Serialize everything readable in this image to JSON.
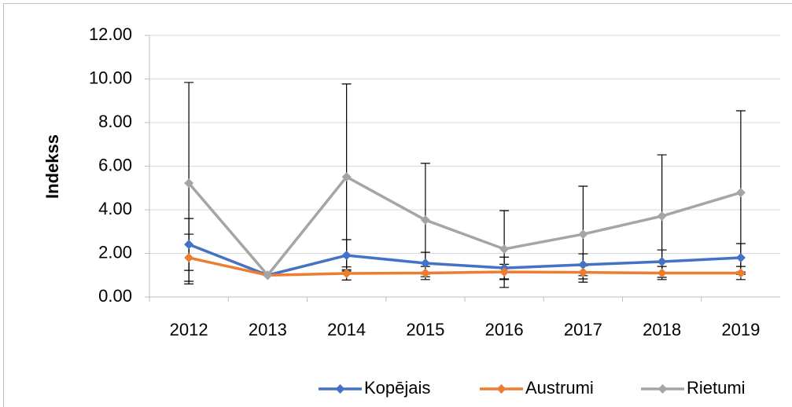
{
  "chart_data": {
    "type": "line",
    "y_label": "Indekss",
    "categories": [
      "2012",
      "2013",
      "2014",
      "2015",
      "2016",
      "2017",
      "2018",
      "2019"
    ],
    "series": [
      {
        "name": "Kopējais",
        "color": "#4472c4",
        "values": [
          2.41,
          1.0,
          1.91,
          1.55,
          1.33,
          1.48,
          1.62,
          1.8
        ],
        "errors": [
          1.19,
          0,
          0.72,
          0.5,
          0.5,
          0.5,
          0.54,
          0.65
        ]
      },
      {
        "name": "Austrumi",
        "color": "#ed7d31",
        "values": [
          1.8,
          1.0,
          1.08,
          1.1,
          1.15,
          1.13,
          1.1,
          1.1
        ],
        "errors": [
          1.08,
          0,
          0.3,
          0.3,
          0.35,
          0.3,
          0.3,
          0.3
        ]
      },
      {
        "name": "Rietumi",
        "color": "#a5a5a5",
        "values": [
          5.22,
          1.0,
          5.51,
          3.53,
          2.2,
          2.88,
          3.71,
          4.79
        ],
        "errors": [
          4.62,
          0,
          4.26,
          2.6,
          1.76,
          2.2,
          2.81,
          3.75
        ]
      }
    ],
    "ylim": [
      0,
      12
    ],
    "yticks": [
      {
        "value": 0,
        "label": "0.00"
      },
      {
        "value": 2,
        "label": "2.00"
      },
      {
        "value": 4,
        "label": "4.00"
      },
      {
        "value": 6,
        "label": "6.00"
      },
      {
        "value": 8,
        "label": "8.00"
      },
      {
        "value": 10,
        "label": "10.00"
      },
      {
        "value": 12,
        "label": "12.00"
      }
    ],
    "grid": true,
    "legend": "bottom"
  }
}
